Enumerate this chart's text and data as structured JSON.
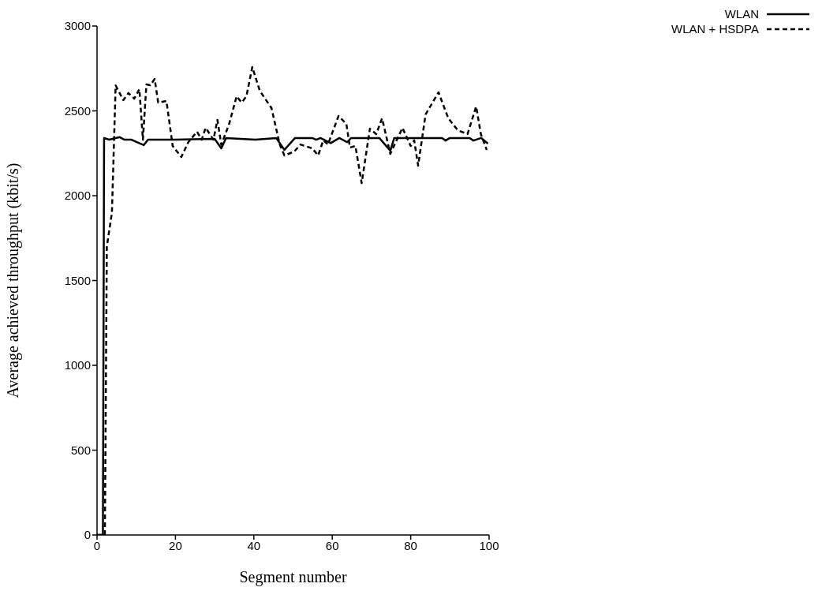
{
  "chart_data": {
    "type": "line",
    "xlabel": "Segment number",
    "ylabel": "Average achieved throughput (kbit/s)",
    "xlim": [
      0,
      100
    ],
    "xticks": [
      0,
      20,
      40,
      60,
      80,
      100
    ],
    "ylim": [
      0,
      3000
    ],
    "yticks": [
      0,
      500,
      1000,
      1500,
      2000,
      2500,
      3000
    ],
    "grid": false,
    "legend": "top right",
    "marker": "none",
    "series": [
      {
        "name": "WLAN",
        "color": "#000000",
        "line_style": "solid",
        "x": [
          0,
          1.5,
          1.8,
          3.1,
          5.8,
          7,
          8.8,
          11.9,
          13,
          20,
          30,
          31.7,
          32.9,
          40.4,
          45.7,
          47.8,
          50.5,
          54.9,
          55.9,
          57,
          59.6,
          61.8,
          63.8,
          64.8,
          72,
          74.8,
          75.8,
          88,
          88.9,
          90,
          95,
          96,
          98,
          99.7
        ],
        "values": [
          0,
          0,
          2340,
          2330,
          2345,
          2330,
          2330,
          2298,
          2330,
          2330,
          2335,
          2279,
          2340,
          2330,
          2340,
          2270,
          2340,
          2340,
          2330,
          2340,
          2310,
          2340,
          2315,
          2340,
          2340,
          2265,
          2340,
          2340,
          2325,
          2340,
          2340,
          2325,
          2340,
          2307
        ]
      },
      {
        "name": "WLAN + HSDPA",
        "color": "#000000",
        "line_style": "dashed",
        "x": [
          0,
          2,
          2.5,
          3.8,
          4.75,
          6.7,
          8,
          9.5,
          10.8,
          11.7,
          12.6,
          13.6,
          14.7,
          15.6,
          17.7,
          19.3,
          21.5,
          23.3,
          25.5,
          26.7,
          27.7,
          29.7,
          30.7,
          31.7,
          33.7,
          35.6,
          36.9,
          38.1,
          39.6,
          41.5,
          44.5,
          46.6,
          47.8,
          50.3,
          51.9,
          54.9,
          56.4,
          57.7,
          58.9,
          61.6,
          63.6,
          64.5,
          65.9,
          67.5,
          69.6,
          71.2,
          72.7,
          74.8,
          77.9,
          80,
          80.9,
          81.9,
          83.8,
          87.1,
          89.6,
          92,
          94.5,
          96.7,
          97.9,
          99.4
        ],
        "values": [
          0,
          0,
          1700,
          1900,
          2650,
          2563,
          2605,
          2572,
          2628,
          2330,
          2656,
          2651,
          2688,
          2549,
          2558,
          2293,
          2228,
          2316,
          2377,
          2330,
          2400,
          2330,
          2447,
          2300,
          2423,
          2586,
          2549,
          2586,
          2758,
          2619,
          2516,
          2302,
          2237,
          2260,
          2302,
          2279,
          2237,
          2326,
          2302,
          2470,
          2423,
          2284,
          2293,
          2074,
          2395,
          2363,
          2456,
          2247,
          2400,
          2293,
          2326,
          2177,
          2479,
          2609,
          2456,
          2386,
          2363,
          2526,
          2363,
          2270
        ]
      }
    ]
  }
}
